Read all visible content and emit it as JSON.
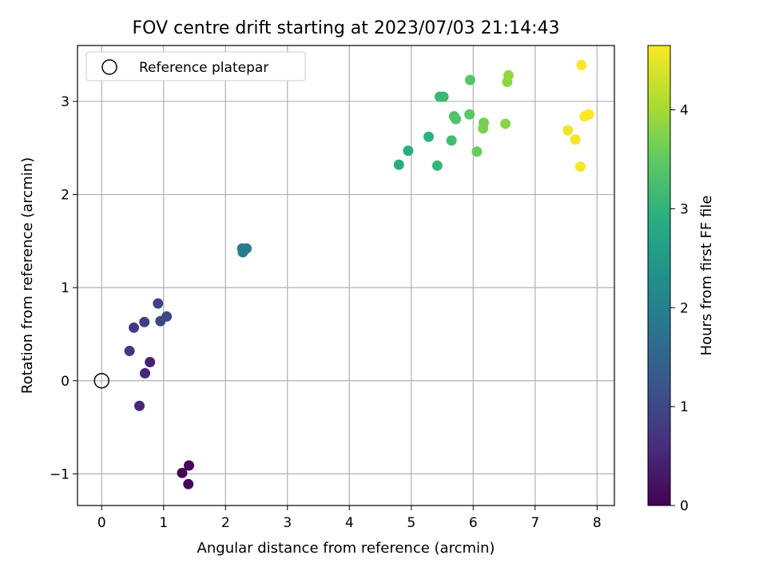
{
  "chart_data": {
    "type": "scatter",
    "title": "FOV centre drift starting at 2023/07/03 21:14:43",
    "xlabel": "Angular distance from reference (arcmin)",
    "ylabel": "Rotation from reference (arcmin)",
    "xlim": [
      -0.39,
      8.28
    ],
    "ylim": [
      -1.34,
      3.6
    ],
    "xticks": [
      "0",
      "1",
      "2",
      "3",
      "4",
      "5",
      "6",
      "7",
      "8"
    ],
    "yticks": [
      "−1",
      "0",
      "1",
      "2",
      "3"
    ],
    "grid": true,
    "legend": {
      "placement": "top-left",
      "entries": [
        "Reference platepar"
      ]
    },
    "reference_point": {
      "label": "Reference platepar",
      "x": 0,
      "y": 0
    },
    "colorbar": {
      "label": "Hours from first FF file",
      "colormap": "viridis",
      "range": [
        0,
        4.65
      ],
      "ticks": [
        "0",
        "1",
        "2",
        "3",
        "4"
      ]
    },
    "points": [
      {
        "x": 1.3,
        "y": -0.99,
        "c": 0.05
      },
      {
        "x": 1.41,
        "y": -0.91,
        "c": 0.08
      },
      {
        "x": 1.4,
        "y": -1.11,
        "c": 0.1
      },
      {
        "x": 0.78,
        "y": 0.2,
        "c": 0.45
      },
      {
        "x": 0.7,
        "y": 0.08,
        "c": 0.48
      },
      {
        "x": 0.61,
        "y": -0.27,
        "c": 0.52
      },
      {
        "x": 0.45,
        "y": 0.32,
        "c": 0.75
      },
      {
        "x": 0.52,
        "y": 0.57,
        "c": 0.8
      },
      {
        "x": 0.69,
        "y": 0.63,
        "c": 0.85
      },
      {
        "x": 0.91,
        "y": 0.83,
        "c": 0.95
      },
      {
        "x": 0.95,
        "y": 0.64,
        "c": 0.98
      },
      {
        "x": 1.05,
        "y": 0.69,
        "c": 1.0
      },
      {
        "x": 2.27,
        "y": 1.42,
        "c": 1.9
      },
      {
        "x": 2.34,
        "y": 1.42,
        "c": 1.92
      },
      {
        "x": 2.28,
        "y": 1.38,
        "c": 1.95
      },
      {
        "x": 4.8,
        "y": 2.32,
        "c": 2.85
      },
      {
        "x": 4.95,
        "y": 2.47,
        "c": 2.9
      },
      {
        "x": 5.28,
        "y": 2.62,
        "c": 2.95
      },
      {
        "x": 5.42,
        "y": 2.31,
        "c": 3.05
      },
      {
        "x": 5.46,
        "y": 3.05,
        "c": 3.1
      },
      {
        "x": 5.52,
        "y": 3.05,
        "c": 3.12
      },
      {
        "x": 5.65,
        "y": 2.58,
        "c": 3.2
      },
      {
        "x": 5.69,
        "y": 2.84,
        "c": 3.3
      },
      {
        "x": 5.72,
        "y": 2.81,
        "c": 3.35
      },
      {
        "x": 5.95,
        "y": 3.23,
        "c": 3.4
      },
      {
        "x": 5.94,
        "y": 2.86,
        "c": 3.45
      },
      {
        "x": 6.06,
        "y": 2.46,
        "c": 3.55
      },
      {
        "x": 6.17,
        "y": 2.77,
        "c": 3.65
      },
      {
        "x": 6.16,
        "y": 2.71,
        "c": 3.7
      },
      {
        "x": 6.52,
        "y": 2.76,
        "c": 3.8
      },
      {
        "x": 6.55,
        "y": 3.21,
        "c": 3.85
      },
      {
        "x": 6.57,
        "y": 3.28,
        "c": 3.9
      },
      {
        "x": 7.53,
        "y": 2.69,
        "c": 4.55
      },
      {
        "x": 7.65,
        "y": 2.59,
        "c": 4.58
      },
      {
        "x": 7.73,
        "y": 2.3,
        "c": 4.6
      },
      {
        "x": 7.75,
        "y": 3.39,
        "c": 4.62
      },
      {
        "x": 7.8,
        "y": 2.84,
        "c": 4.63
      },
      {
        "x": 7.87,
        "y": 2.86,
        "c": 4.64
      }
    ]
  }
}
